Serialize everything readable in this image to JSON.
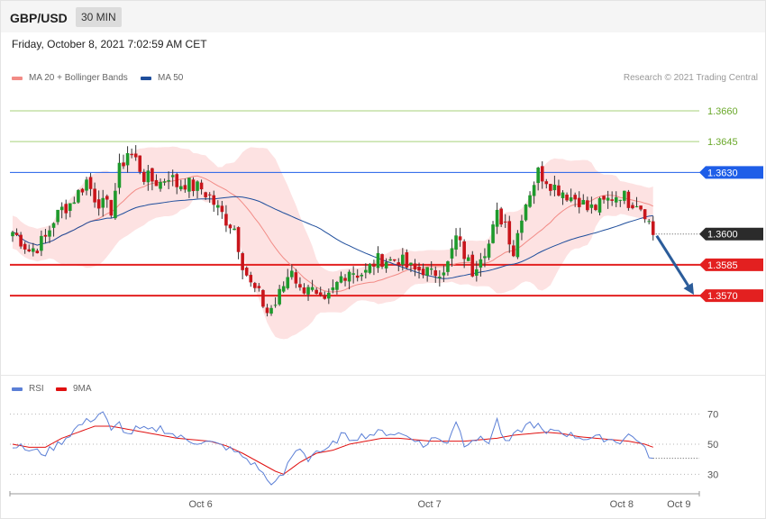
{
  "header": {
    "pair": "GBP/USD",
    "timeframe": "30 MIN"
  },
  "date": "Friday, October 8, 2021 7:02:59 AM CET",
  "legend_main": [
    {
      "name": "MA 20 + Bollinger Bands",
      "color": "#f28b86"
    },
    {
      "name": "MA 50",
      "color": "#1f4e9c"
    }
  ],
  "credit": "Research © 2021 Trading Central",
  "legend_rsi": [
    {
      "name": "RSI",
      "color": "#5b7fd6"
    },
    {
      "name": "9MA",
      "color": "#e01010"
    }
  ],
  "colors": {
    "up": "#1e9a2c",
    "down": "#c8151b",
    "band": "#fde2e2",
    "resistance_green": "#a7d27a",
    "blue_line": "#1e5ee8",
    "red_level": "#e32020",
    "arrow": "#2b5c9a",
    "current": "#2b2b2b"
  },
  "chart_data": [
    {
      "type": "candlestick",
      "title": "GBP/USD",
      "ylim": [
        1.3538,
        1.3667
      ],
      "price_levels": [
        {
          "value": 1.366,
          "label": "1.3660",
          "style": "green"
        },
        {
          "value": 1.3645,
          "label": "1.3645",
          "style": "green"
        },
        {
          "value": 1.363,
          "label": "1.3630",
          "style": "blue"
        },
        {
          "value": 1.36,
          "label": "1.3600",
          "style": "current"
        },
        {
          "value": 1.3585,
          "label": "1.3585",
          "style": "red"
        },
        {
          "value": 1.357,
          "label": "1.3570",
          "style": "red"
        }
      ],
      "arrow": {
        "from": 1.36,
        "to": 1.357
      },
      "close_path": [
        [
          0,
          1.3601
        ],
        [
          2,
          1.3597
        ],
        [
          4,
          1.3592
        ],
        [
          6,
          1.3594
        ],
        [
          8,
          1.3598
        ],
        [
          10,
          1.3607
        ],
        [
          12,
          1.3612
        ],
        [
          14,
          1.3615
        ],
        [
          16,
          1.362
        ],
        [
          18,
          1.3626
        ],
        [
          20,
          1.3618
        ],
        [
          22,
          1.3614
        ],
        [
          24,
          1.3612
        ],
        [
          26,
          1.3631
        ],
        [
          28,
          1.364
        ],
        [
          30,
          1.3636
        ],
        [
          32,
          1.3628
        ],
        [
          34,
          1.3626
        ],
        [
          36,
          1.3625
        ],
        [
          38,
          1.3629
        ],
        [
          40,
          1.3624
        ],
        [
          42,
          1.3625
        ],
        [
          44,
          1.3623
        ],
        [
          46,
          1.3622
        ],
        [
          48,
          1.3618
        ],
        [
          50,
          1.3612
        ],
        [
          52,
          1.3607
        ],
        [
          54,
          1.3603
        ],
        [
          56,
          1.3586
        ],
        [
          58,
          1.3575
        ],
        [
          60,
          1.357
        ],
        [
          62,
          1.3562
        ],
        [
          64,
          1.3566
        ],
        [
          66,
          1.3575
        ],
        [
          68,
          1.3584
        ],
        [
          70,
          1.3572
        ],
        [
          72,
          1.3576
        ],
        [
          74,
          1.3568
        ],
        [
          76,
          1.3565
        ],
        [
          78,
          1.3572
        ],
        [
          80,
          1.3579
        ],
        [
          82,
          1.3583
        ],
        [
          84,
          1.3581
        ],
        [
          86,
          1.3581
        ],
        [
          88,
          1.3586
        ],
        [
          90,
          1.3588
        ],
        [
          92,
          1.3587
        ],
        [
          94,
          1.3588
        ],
        [
          96,
          1.3584
        ],
        [
          98,
          1.3582
        ],
        [
          100,
          1.3583
        ],
        [
          102,
          1.358
        ],
        [
          104,
          1.3583
        ],
        [
          106,
          1.3585
        ],
        [
          108,
          1.3598
        ],
        [
          110,
          1.359
        ],
        [
          112,
          1.3582
        ],
        [
          114,
          1.3591
        ],
        [
          116,
          1.3595
        ],
        [
          118,
          1.3609
        ],
        [
          120,
          1.3606
        ],
        [
          122,
          1.3591
        ],
        [
          124,
          1.361
        ],
        [
          126,
          1.3621
        ],
        [
          128,
          1.363
        ],
        [
          130,
          1.3627
        ],
        [
          132,
          1.3623
        ],
        [
          134,
          1.3621
        ],
        [
          136,
          1.3618
        ],
        [
          138,
          1.3617
        ],
        [
          140,
          1.3612
        ],
        [
          142,
          1.3613
        ],
        [
          144,
          1.3615
        ],
        [
          146,
          1.3618
        ],
        [
          148,
          1.362
        ],
        [
          150,
          1.3616
        ],
        [
          152,
          1.3616
        ],
        [
          154,
          1.3611
        ],
        [
          156,
          1.36
        ]
      ],
      "time_ticks": [
        {
          "index": 46,
          "label": "Oct 6"
        },
        {
          "index": 102,
          "label": "Oct 7"
        },
        {
          "index": 149,
          "label": "Oct 8"
        },
        {
          "index": 163,
          "label": "Oct 9"
        }
      ]
    },
    {
      "type": "line",
      "series": [
        {
          "name": "RSI"
        },
        {
          "name": "9MA"
        }
      ],
      "ylim": [
        20,
        80
      ],
      "yticks": [
        {
          "value": 70,
          "label": "70"
        },
        {
          "value": 50,
          "label": "50"
        },
        {
          "value": 30,
          "label": "30"
        }
      ],
      "rsi_path": [
        [
          0,
          50
        ],
        [
          4,
          46
        ],
        [
          8,
          44
        ],
        [
          12,
          52
        ],
        [
          16,
          62
        ],
        [
          20,
          68
        ],
        [
          22,
          72
        ],
        [
          24,
          58
        ],
        [
          26,
          64
        ],
        [
          28,
          56
        ],
        [
          30,
          60
        ],
        [
          34,
          59
        ],
        [
          36,
          61
        ],
        [
          40,
          55
        ],
        [
          44,
          52
        ],
        [
          48,
          51
        ],
        [
          52,
          48
        ],
        [
          56,
          42
        ],
        [
          58,
          38
        ],
        [
          60,
          34
        ],
        [
          62,
          26
        ],
        [
          64,
          24
        ],
        [
          66,
          30
        ],
        [
          68,
          42
        ],
        [
          70,
          48
        ],
        [
          72,
          40
        ],
        [
          74,
          46
        ],
        [
          76,
          44
        ],
        [
          78,
          50
        ],
        [
          80,
          56
        ],
        [
          82,
          54
        ],
        [
          86,
          56
        ],
        [
          90,
          58
        ],
        [
          94,
          57
        ],
        [
          98,
          54
        ],
        [
          100,
          48
        ],
        [
          102,
          54
        ],
        [
          106,
          52
        ],
        [
          108,
          66
        ],
        [
          110,
          50
        ],
        [
          112,
          54
        ],
        [
          116,
          52
        ],
        [
          118,
          66
        ],
        [
          120,
          50
        ],
        [
          124,
          60
        ],
        [
          126,
          64
        ],
        [
          128,
          62
        ],
        [
          130,
          56
        ],
        [
          132,
          60
        ],
        [
          136,
          56
        ],
        [
          140,
          54
        ],
        [
          144,
          54
        ],
        [
          148,
          52
        ],
        [
          150,
          56
        ],
        [
          152,
          54
        ],
        [
          154,
          46
        ],
        [
          156,
          40
        ]
      ],
      "ma_path": [
        [
          0,
          50
        ],
        [
          4,
          48
        ],
        [
          8,
          48
        ],
        [
          12,
          54
        ],
        [
          16,
          58
        ],
        [
          20,
          62
        ],
        [
          24,
          62
        ],
        [
          28,
          60
        ],
        [
          32,
          58
        ],
        [
          36,
          56
        ],
        [
          40,
          54
        ],
        [
          44,
          53
        ],
        [
          48,
          52
        ],
        [
          52,
          49
        ],
        [
          56,
          44
        ],
        [
          60,
          38
        ],
        [
          64,
          32
        ],
        [
          66,
          30
        ],
        [
          70,
          38
        ],
        [
          74,
          44
        ],
        [
          78,
          46
        ],
        [
          82,
          50
        ],
        [
          86,
          52
        ],
        [
          90,
          54
        ],
        [
          94,
          54
        ],
        [
          98,
          53
        ],
        [
          102,
          52
        ],
        [
          106,
          52
        ],
        [
          110,
          52
        ],
        [
          114,
          53
        ],
        [
          118,
          54
        ],
        [
          122,
          56
        ],
        [
          126,
          57
        ],
        [
          130,
          58
        ],
        [
          134,
          57
        ],
        [
          138,
          55
        ],
        [
          142,
          54
        ],
        [
          146,
          53
        ],
        [
          150,
          52
        ],
        [
          154,
          50
        ],
        [
          156,
          48
        ]
      ]
    }
  ]
}
